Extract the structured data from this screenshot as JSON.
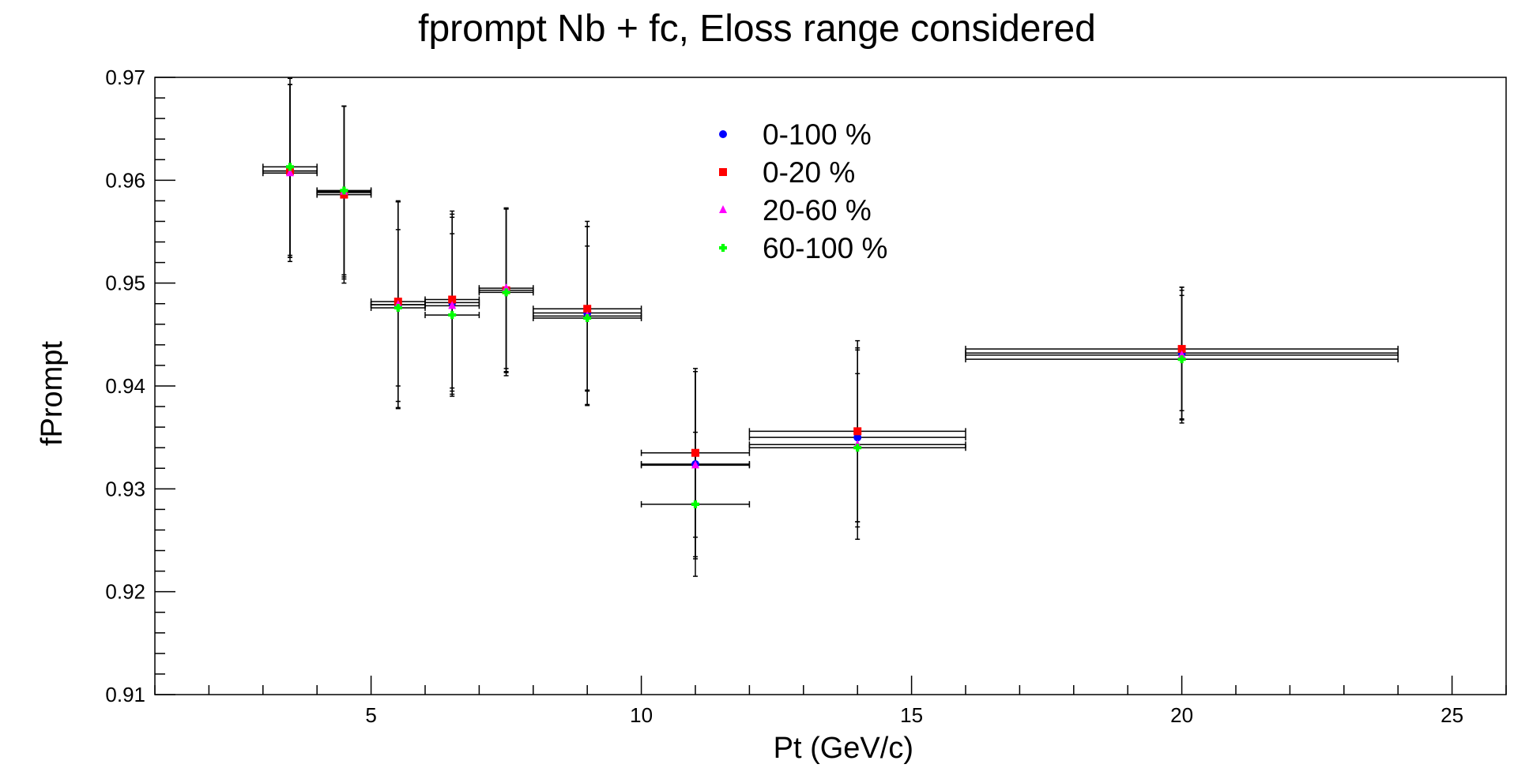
{
  "chart_data": {
    "type": "scatter",
    "title": "fprompt Nb + fc, Eloss range considered",
    "xlabel": "Pt (GeV/c)",
    "ylabel": "fPrompt",
    "xlim": [
      1,
      26
    ],
    "ylim": [
      0.91,
      0.97
    ],
    "x_ticks": [
      5,
      10,
      15,
      20,
      25
    ],
    "y_ticks": [
      0.91,
      0.92,
      0.93,
      0.94,
      0.95,
      0.96,
      0.97
    ],
    "x_ticklabels": [
      "5",
      "10",
      "15",
      "20",
      "25"
    ],
    "y_ticklabels": [
      "0.91",
      "0.92",
      "0.93",
      "0.94",
      "0.95",
      "0.96",
      "0.97"
    ],
    "grid": false,
    "legend_position": "top-center",
    "x_bins": [
      {
        "x": 3.5,
        "xerr": 0.5
      },
      {
        "x": 4.5,
        "xerr": 0.5
      },
      {
        "x": 5.5,
        "xerr": 0.5
      },
      {
        "x": 6.5,
        "xerr": 0.5
      },
      {
        "x": 7.5,
        "xerr": 0.5
      },
      {
        "x": 9,
        "xerr": 1
      },
      {
        "x": 11,
        "xerr": 1
      },
      {
        "x": 14,
        "xerr": 2
      },
      {
        "x": 20,
        "xerr": 4
      }
    ],
    "series": [
      {
        "name": "0-100 %",
        "color": "#0000ff",
        "marker": "circle",
        "y": [
          0.9609,
          0.9588,
          0.9479,
          0.9481,
          0.9493,
          0.9471,
          0.9324,
          0.935,
          0.9432
        ],
        "yerr": [
          0.0084,
          0.0084,
          0.01,
          0.0086,
          0.0079,
          0.0089,
          0.009,
          0.0087,
          0.0064
        ]
      },
      {
        "name": "0-20 %",
        "color": "#ff0000",
        "marker": "square",
        "y": [
          0.9609,
          0.9586,
          0.9482,
          0.9484,
          0.9493,
          0.9475,
          0.9335,
          0.9356,
          0.9436
        ],
        "yerr": [
          0.0084,
          0.0086,
          0.0097,
          0.0086,
          0.008,
          0.008,
          0.0082,
          0.0088,
          0.006
        ]
      },
      {
        "name": "20-60 %",
        "color": "#ff00ff",
        "marker": "triangle",
        "y": [
          0.9607,
          0.9589,
          0.9479,
          0.9478,
          0.9495,
          0.9468,
          0.9323,
          0.9343,
          0.943
        ],
        "yerr": [
          0.0086,
          0.0083,
          0.0101,
          0.0086,
          0.0078,
          0.0087,
          0.0091,
          0.0092,
          0.0063
        ]
      },
      {
        "name": "60-100 %",
        "color": "#00ff00",
        "marker": "cross",
        "y": [
          0.9613,
          0.959,
          0.9476,
          0.9469,
          0.9491,
          0.9466,
          0.9285,
          0.934,
          0.9426
        ],
        "yerr": [
          0.0086,
          0.0082,
          0.0076,
          0.0079,
          0.0081,
          0.007,
          0.007,
          0.0072,
          0.0062
        ]
      }
    ]
  }
}
